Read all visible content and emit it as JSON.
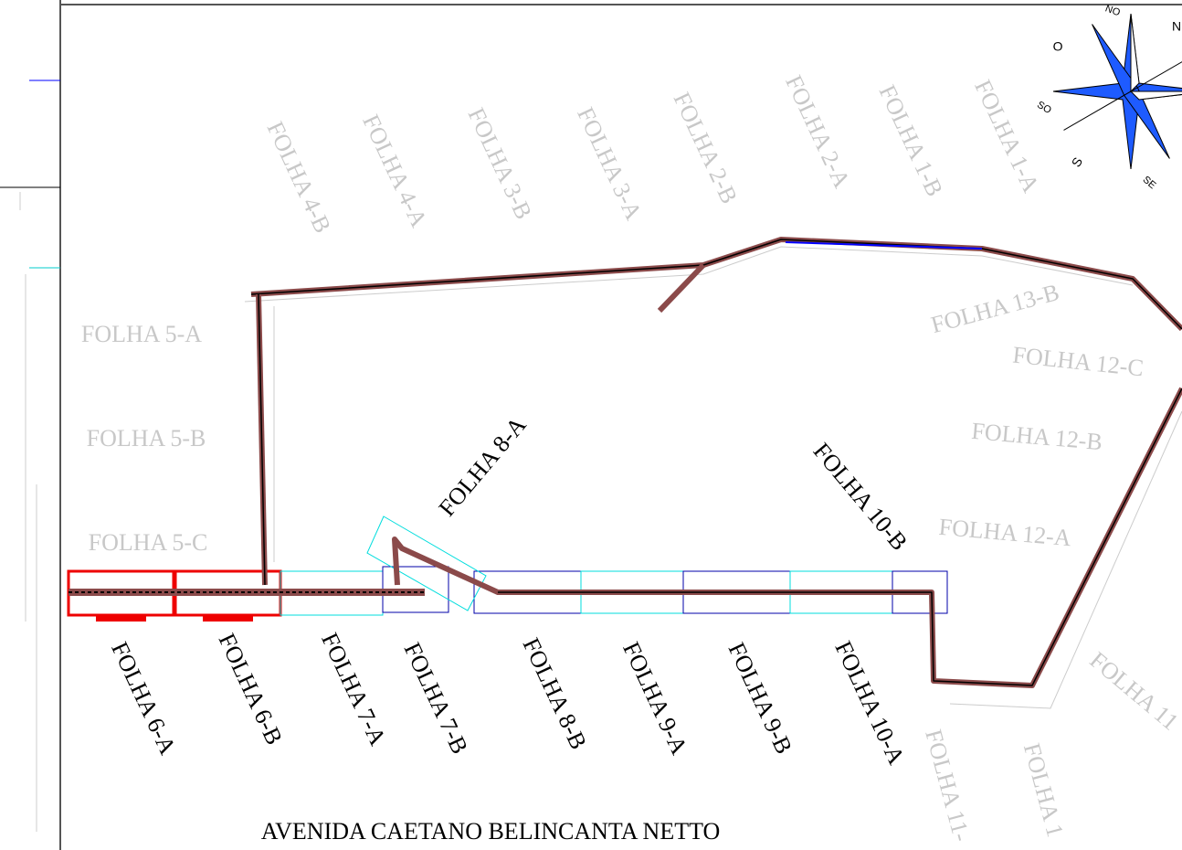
{
  "map": {
    "title": "AVENIDA CAETANO BELINCANTA NETTO",
    "compass": [
      "NO",
      "N",
      "O",
      "SO",
      "S",
      "SE"
    ],
    "top_sheets": [
      "FOLHA 4-B",
      "FOLHA 4-A",
      "FOLHA 3-B",
      "FOLHA 3-A",
      "FOLHA 2-B",
      "FOLHA 2-A",
      "FOLHA 1-B",
      "FOLHA 1-A"
    ],
    "left_sheets": [
      "FOLHA 5-A",
      "FOLHA 5-B",
      "FOLHA 5-C"
    ],
    "right_sheets": [
      "FOLHA 13-B",
      "FOLHA 12-C",
      "FOLHA 12-B",
      "FOLHA 12-A"
    ],
    "diagonal_sheets": [
      "FOLHA 8-A",
      "FOLHA 10-B"
    ],
    "bottom_sheets": [
      "FOLHA 6-A",
      "FOLHA 6-B",
      "FOLHA 7-A",
      "FOLHA 7-B",
      "FOLHA 8-B",
      "FOLHA 9-A",
      "FOLHA 9-B",
      "FOLHA 10-A"
    ],
    "cut_sheets": [
      "FOLHA 11-",
      "FOLHA 1",
      "FOLHA 11"
    ]
  }
}
